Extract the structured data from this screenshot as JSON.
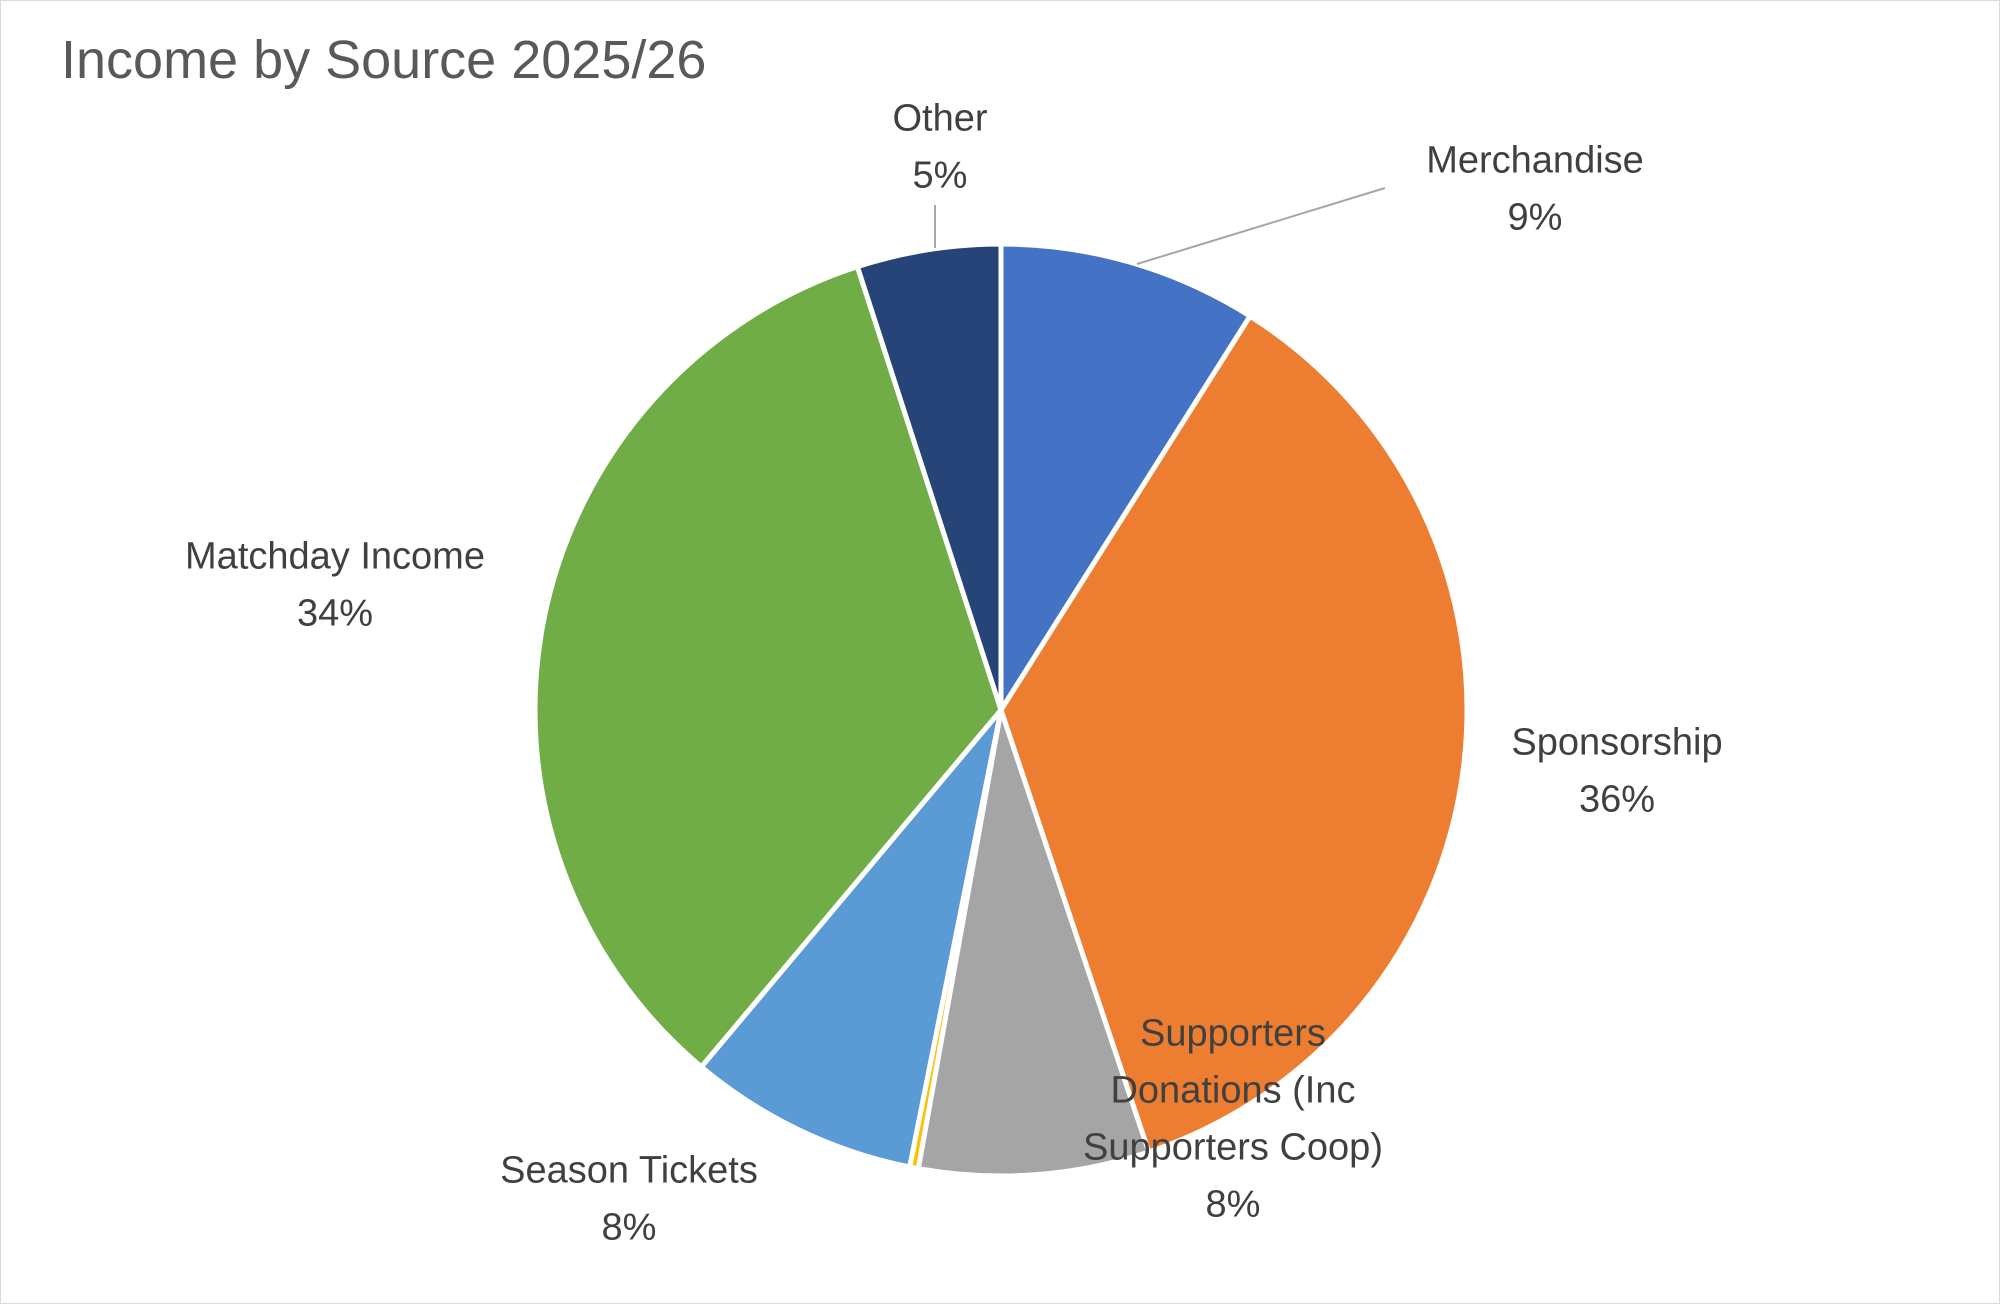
{
  "chart_data": {
    "type": "pie",
    "title": "Income by Source 2025/26",
    "start_angle_deg": 0,
    "direction": "clockwise",
    "slices": [
      {
        "label": "Merchandise",
        "label_lines": [
          "Merchandise"
        ],
        "value": 9,
        "display": "9%",
        "color": "#4472C4"
      },
      {
        "label": "Sponsorship",
        "label_lines": [
          "Sponsorship"
        ],
        "value": 36,
        "display": "36%",
        "color": "#ED7D31"
      },
      {
        "label": "Supporters Donations (Inc Supporters Coop)",
        "label_lines": [
          "Supporters",
          "Donations (Inc",
          "Supporters Coop)"
        ],
        "value": 8,
        "display": "8%",
        "color": "#A5A5A5"
      },
      {
        "label": "",
        "label_lines": [],
        "value": 0.3,
        "display": "",
        "color": "#FFC000"
      },
      {
        "label": "Season Tickets",
        "label_lines": [
          "Season Tickets"
        ],
        "value": 8,
        "display": "8%",
        "color": "#5B9BD5"
      },
      {
        "label": "Matchday Income",
        "label_lines": [
          "Matchday Income"
        ],
        "value": 34,
        "display": "34%",
        "color": "#70AD47"
      },
      {
        "label": "Other",
        "label_lines": [
          "Other"
        ],
        "value": 5,
        "display": "5%",
        "color": "#264478"
      }
    ]
  }
}
